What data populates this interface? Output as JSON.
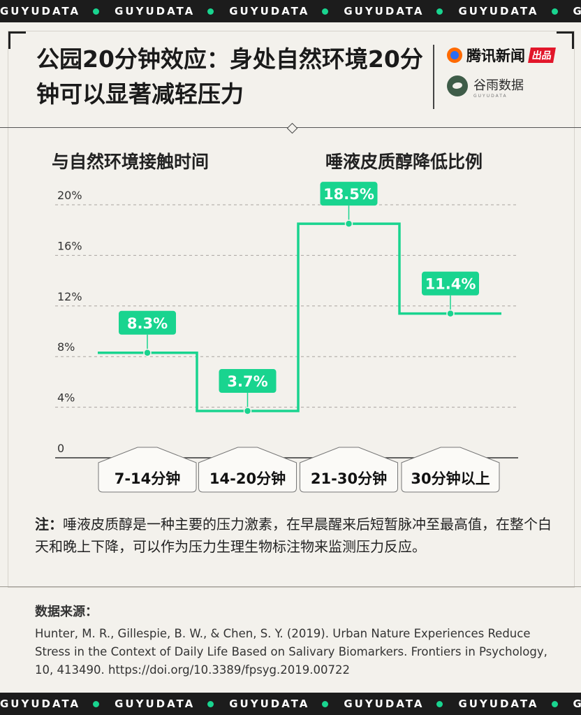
{
  "banner": {
    "text": "GUYUDATA"
  },
  "header": {
    "title": "公园20分钟效应：身处自然环境20分钟可以显著减轻压力",
    "logo_tencent": "腾讯新闻",
    "logo_tencent_badge": "出品",
    "logo_guyu": "谷雨数据",
    "logo_guyu_sub": "GUYUDATA"
  },
  "subheaders": {
    "left": "与自然环境接触时间",
    "right": "唾液皮质醇降低比例"
  },
  "colors": {
    "accent": "#19d48f",
    "ink": "#1a1a1a",
    "paper": "#f3f1ec",
    "banner": "#1c1c1c"
  },
  "chart_data": {
    "type": "line",
    "step": true,
    "categories": [
      "7-14分钟",
      "14-20分钟",
      "21-30分钟",
      "30分钟以上"
    ],
    "values": [
      8.3,
      3.7,
      18.5,
      11.4
    ],
    "value_labels": [
      "8.3%",
      "3.7%",
      "18.5%",
      "11.4%"
    ],
    "y_ticks": [
      0,
      4,
      8,
      12,
      16,
      20
    ],
    "y_tick_labels": [
      "0",
      "4%",
      "8%",
      "12%",
      "16%",
      "20%"
    ],
    "ylim": [
      0,
      20
    ],
    "grid": true,
    "color": "#19d48f"
  },
  "note": {
    "label": "注：",
    "text": "唾液皮质醇是一种主要的压力激素，在早晨醒来后短暂脉冲至最高值，在整个白天和晚上下降，可以作为压力生理生物标注物来监测压力反应。"
  },
  "source": {
    "label": "数据来源：",
    "text": "Hunter, M. R., Gillespie, B. W., & Chen, S. Y. (2019). Urban Nature Experiences Reduce Stress in the Context of Daily Life Based on Salivary Biomarkers. Frontiers in Psychology, 10, 413490. https://doi.org/10.3389/fpsyg.2019.00722"
  }
}
